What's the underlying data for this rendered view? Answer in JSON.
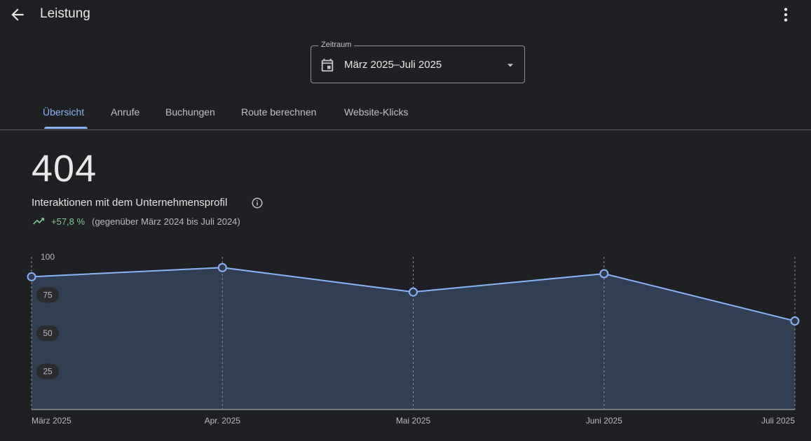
{
  "header": {
    "title": "Leistung",
    "back_icon": "arrow-back-icon",
    "more_icon": "more-vert-icon"
  },
  "date_range": {
    "legend": "Zeitraum",
    "value": "März 2025–Juli 2025",
    "icon": "calendar-icon"
  },
  "tabs": [
    {
      "label": "Übersicht",
      "active": true
    },
    {
      "label": "Anrufe",
      "active": false
    },
    {
      "label": "Buchungen",
      "active": false
    },
    {
      "label": "Route berechnen",
      "active": false
    },
    {
      "label": "Website-Klicks",
      "active": false
    }
  ],
  "summary": {
    "total": "404",
    "label": "Interaktionen mit dem Unternehmensprofil",
    "trend": "+57,8 %",
    "comparison": "(gegenüber März 2024 bis Juli 2024)"
  },
  "colors": {
    "accent": "#8ab4f8",
    "positive": "#81c995",
    "area_fill": "#334155"
  },
  "chart_data": {
    "type": "area",
    "categories": [
      "März 2025",
      "Apr. 2025",
      "Mai 2025",
      "Juni 2025",
      "Juli 2025"
    ],
    "values": [
      87,
      93,
      77,
      89,
      58
    ],
    "yticks": [
      25,
      50,
      75,
      100
    ],
    "ylim": [
      0,
      100
    ],
    "grid": "vertical-dashed"
  }
}
